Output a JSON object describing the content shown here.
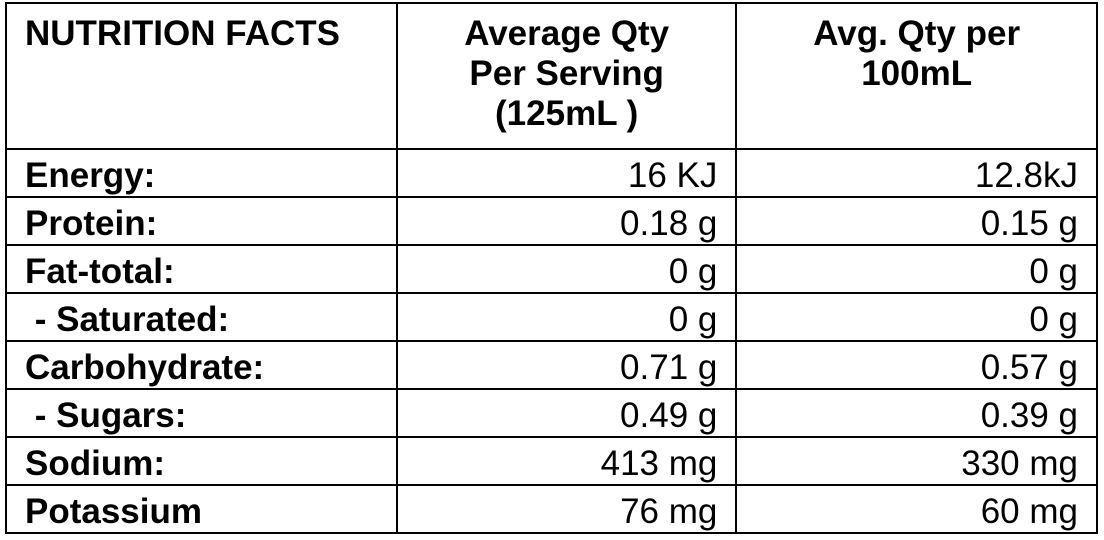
{
  "header": {
    "title": "NUTRITION FACTS",
    "per_serving": [
      "Average Qty",
      "Per Serving",
      "(125mL )"
    ],
    "per_100ml": [
      "Avg. Qty per",
      "100mL"
    ]
  },
  "rows": [
    {
      "label": "Energy:",
      "per_serving": "16 KJ",
      "per_100ml": "12.8kJ"
    },
    {
      "label": "Protein:",
      "per_serving": "0.18 g",
      "per_100ml": "0.15 g"
    },
    {
      "label": "Fat-total:",
      "per_serving": "0 g",
      "per_100ml": "0 g"
    },
    {
      "label": " - Saturated:",
      "per_serving": "0 g",
      "per_100ml": "0 g"
    },
    {
      "label": "Carbohydrate:",
      "per_serving": "0.71 g",
      "per_100ml": "0.57 g"
    },
    {
      "label": " - Sugars:",
      "per_serving": "0.49 g",
      "per_100ml": "0.39 g"
    },
    {
      "label": "Sodium:",
      "per_serving": "413 mg",
      "per_100ml": "330 mg"
    },
    {
      "label": "Potassium",
      "per_serving": "76 mg",
      "per_100ml": "60 mg"
    }
  ]
}
